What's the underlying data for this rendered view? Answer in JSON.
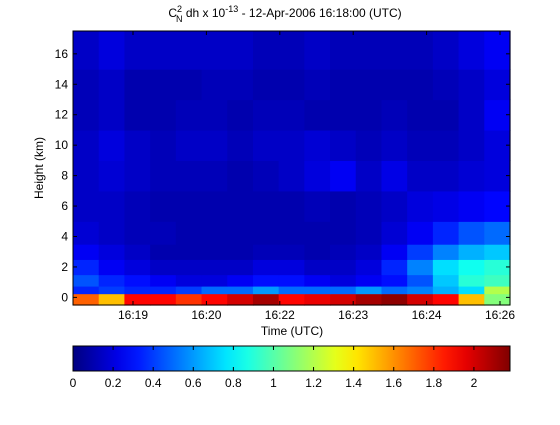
{
  "chart_data": {
    "type": "heatmap",
    "title": {
      "main": "C",
      "sup": "2",
      "sub": "N",
      "rest": " dh x 10",
      "exp": "-13",
      "tail": " - 12-Apr-2006 16:18:00 (UTC)"
    },
    "xlabel": "Time (UTC)",
    "ylabel": "Height (km)",
    "x_ticks": [
      "16:19",
      "16:20",
      "16:22",
      "16:23",
      "16:24",
      "16:26"
    ],
    "y_ticks": [
      "0",
      "2",
      "4",
      "6",
      "8",
      "10",
      "12",
      "14",
      "16"
    ],
    "ylim": [
      -0.5,
      17.5
    ],
    "colorbar": {
      "ticks": [
        "0",
        "0.2",
        "0.4",
        "0.6",
        "0.8",
        "1",
        "1.2",
        "1.4",
        "1.6",
        "1.8",
        "2"
      ],
      "range": [
        0,
        2.18
      ],
      "colormap": "jet"
    },
    "time_bins": 17,
    "height_levels_km": [
      0.0,
      0.5,
      1.0,
      2.0,
      3.0,
      4.0,
      6.0,
      8.0,
      10.0,
      12.0,
      14.0,
      16.0
    ],
    "values": [
      [
        1.7,
        1.5,
        1.9,
        1.9,
        1.8,
        1.9,
        2.0,
        2.1,
        1.9,
        1.95,
        2.0,
        2.1,
        2.15,
        2.0,
        1.9,
        1.5,
        1.1
      ],
      [
        0.35,
        0.4,
        0.35,
        0.35,
        0.4,
        0.5,
        0.5,
        0.6,
        0.5,
        0.5,
        0.5,
        0.6,
        0.5,
        0.55,
        0.65,
        0.75,
        1.2
      ],
      [
        0.45,
        0.35,
        0.3,
        0.25,
        0.2,
        0.2,
        0.25,
        0.3,
        0.3,
        0.25,
        0.2,
        0.25,
        0.3,
        0.45,
        0.7,
        0.9,
        0.95
      ],
      [
        0.35,
        0.25,
        0.2,
        0.15,
        0.15,
        0.15,
        0.15,
        0.2,
        0.2,
        0.15,
        0.15,
        0.2,
        0.35,
        0.55,
        0.75,
        0.85,
        0.9
      ],
      [
        0.25,
        0.2,
        0.15,
        0.1,
        0.1,
        0.1,
        0.1,
        0.12,
        0.12,
        0.1,
        0.12,
        0.15,
        0.25,
        0.4,
        0.55,
        0.65,
        0.7
      ],
      [
        0.18,
        0.15,
        0.12,
        0.12,
        0.1,
        0.1,
        0.1,
        0.1,
        0.1,
        0.1,
        0.1,
        0.12,
        0.18,
        0.25,
        0.35,
        0.45,
        0.5
      ],
      [
        0.15,
        0.15,
        0.12,
        0.1,
        0.1,
        0.1,
        0.1,
        0.1,
        0.1,
        0.12,
        0.1,
        0.12,
        0.15,
        0.2,
        0.22,
        0.25,
        0.28
      ],
      [
        0.15,
        0.18,
        0.15,
        0.12,
        0.12,
        0.12,
        0.1,
        0.12,
        0.15,
        0.2,
        0.25,
        0.15,
        0.22,
        0.15,
        0.15,
        0.18,
        0.2
      ],
      [
        0.15,
        0.2,
        0.15,
        0.12,
        0.15,
        0.15,
        0.12,
        0.15,
        0.15,
        0.18,
        0.15,
        0.12,
        0.15,
        0.12,
        0.12,
        0.15,
        0.2
      ],
      [
        0.12,
        0.15,
        0.1,
        0.1,
        0.12,
        0.12,
        0.1,
        0.12,
        0.12,
        0.1,
        0.1,
        0.1,
        0.12,
        0.1,
        0.1,
        0.15,
        0.25
      ],
      [
        0.12,
        0.15,
        0.1,
        0.1,
        0.1,
        0.12,
        0.12,
        0.1,
        0.1,
        0.12,
        0.1,
        0.1,
        0.1,
        0.1,
        0.12,
        0.15,
        0.2
      ],
      [
        0.15,
        0.2,
        0.15,
        0.15,
        0.15,
        0.15,
        0.15,
        0.12,
        0.12,
        0.15,
        0.12,
        0.12,
        0.12,
        0.12,
        0.15,
        0.2,
        0.25
      ]
    ]
  }
}
